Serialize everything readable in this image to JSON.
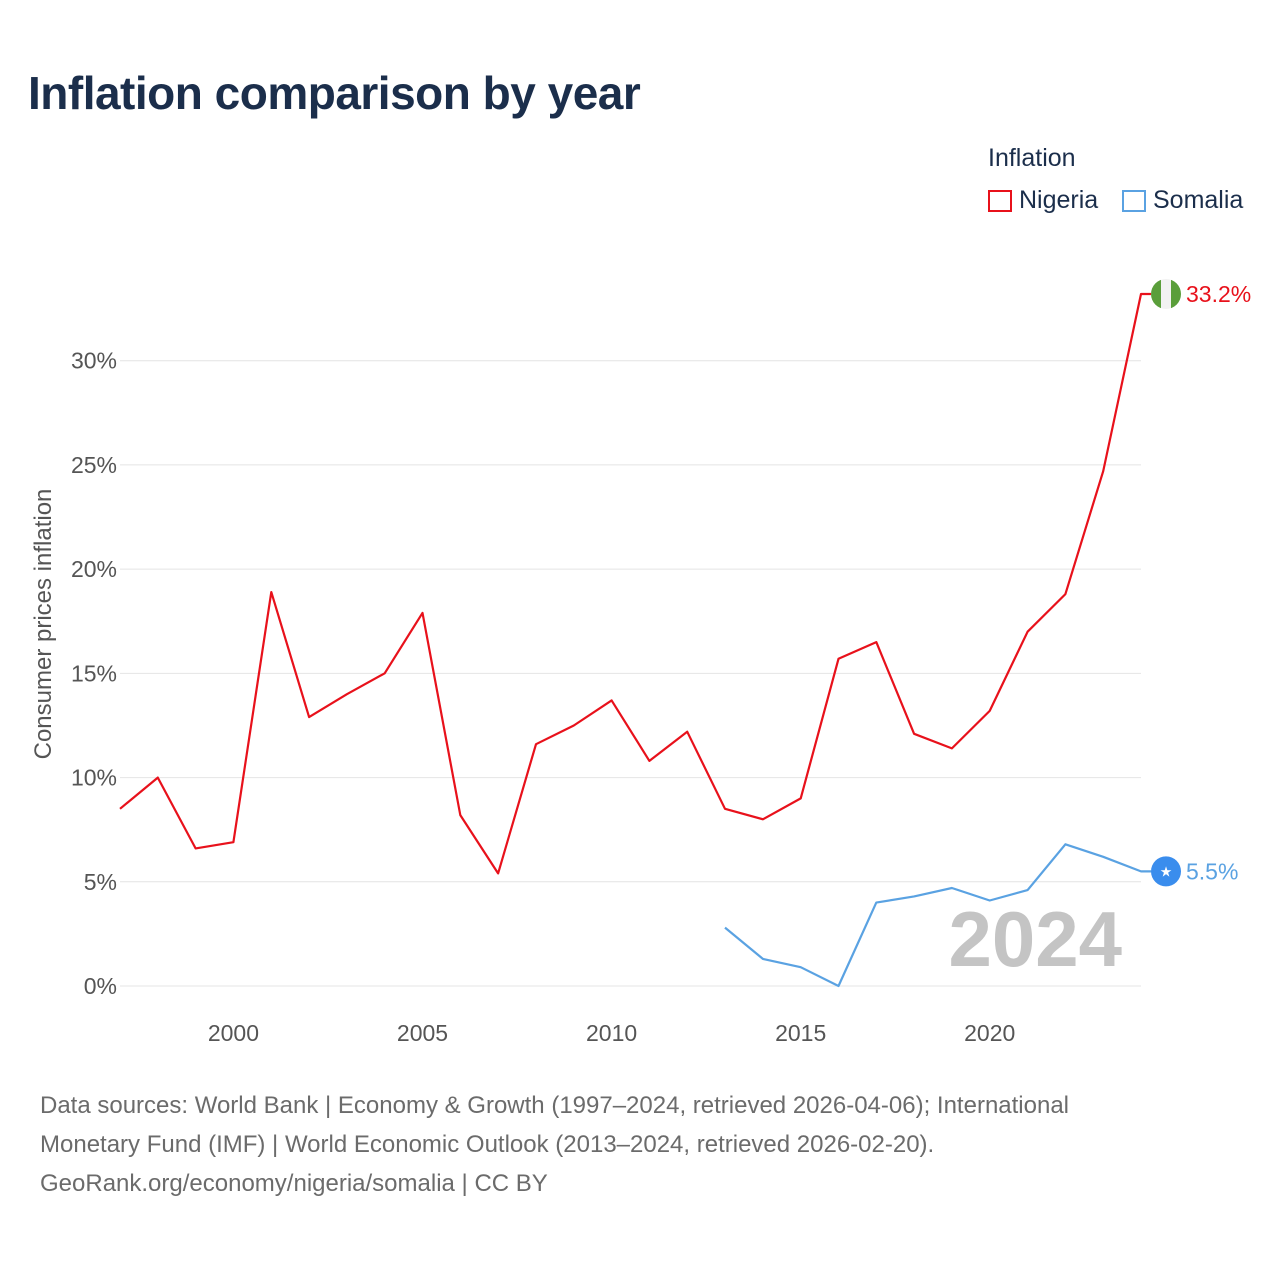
{
  "title": "Inflation comparison by year",
  "legend": {
    "title": "Inflation",
    "items": [
      {
        "label": "Nigeria",
        "color": "#e8111b"
      },
      {
        "label": "Somalia",
        "color": "#5aa2e2"
      }
    ]
  },
  "footer": {
    "line1": "Data sources: World Bank | Economy & Growth (1997–2024, retrieved 2026-04-06); International",
    "line2": "Monetary Fund (IMF) | World Economic Outlook (2013–2024, retrieved 2026-02-20).",
    "line3": "GeoRank.org/economy/nigeria/somalia | CC BY"
  },
  "chart_data": {
    "type": "line",
    "title": "Inflation comparison by year",
    "xlabel": "",
    "ylabel": "Consumer prices inflation",
    "xlim": [
      1997,
      2024
    ],
    "ylim": [
      0,
      33.2
    ],
    "x_ticks": [
      2000,
      2005,
      2010,
      2015,
      2020
    ],
    "y_ticks": [
      0,
      5,
      10,
      15,
      20,
      25,
      30
    ],
    "y_tick_labels": [
      "0%",
      "5%",
      "10%",
      "15%",
      "20%",
      "25%",
      "30%"
    ],
    "grid": true,
    "year_watermark": "2024",
    "series": [
      {
        "name": "Nigeria",
        "color": "#e8111b",
        "end_label": "33.2%",
        "flag_icon": "nigeria-flag-icon",
        "x": [
          1997,
          1998,
          1999,
          2000,
          2001,
          2002,
          2003,
          2004,
          2005,
          2006,
          2007,
          2008,
          2009,
          2010,
          2011,
          2012,
          2013,
          2014,
          2015,
          2016,
          2017,
          2018,
          2019,
          2020,
          2021,
          2022,
          2023,
          2024
        ],
        "values": [
          8.5,
          10.0,
          6.6,
          6.9,
          18.9,
          12.9,
          14.0,
          15.0,
          17.9,
          8.2,
          5.4,
          11.6,
          12.5,
          13.7,
          10.8,
          12.2,
          8.5,
          8.0,
          9.0,
          15.7,
          16.5,
          12.1,
          11.4,
          13.2,
          17.0,
          18.8,
          24.7,
          33.2
        ]
      },
      {
        "name": "Somalia",
        "color": "#5aa2e2",
        "end_label": "5.5%",
        "flag_icon": "somalia-flag-icon",
        "x": [
          2013,
          2014,
          2015,
          2016,
          2017,
          2018,
          2019,
          2020,
          2021,
          2022,
          2023,
          2024
        ],
        "values": [
          2.8,
          1.3,
          0.9,
          0.0,
          4.0,
          4.3,
          4.7,
          4.1,
          4.6,
          6.8,
          6.2,
          5.5
        ]
      }
    ]
  }
}
